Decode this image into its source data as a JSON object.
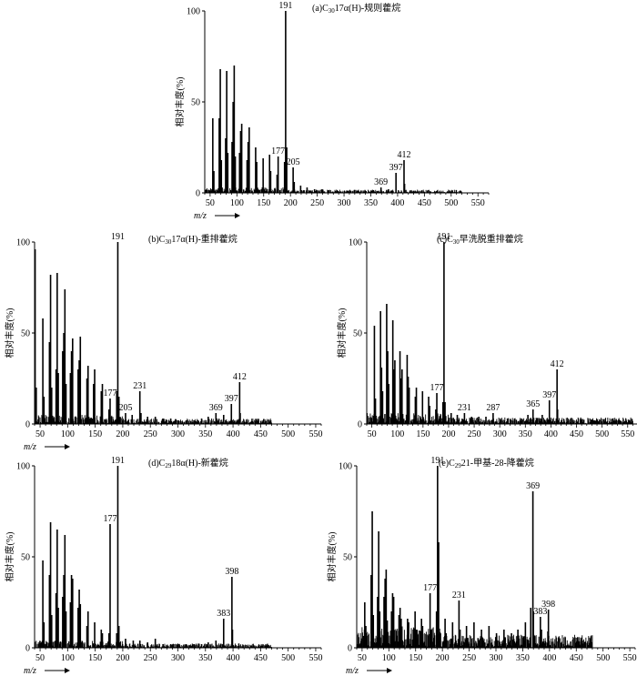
{
  "figure": {
    "background": "#ffffff",
    "ink": "#000000"
  },
  "chart_data": [
    {
      "id": "a",
      "type": "bar",
      "title_parts": [
        {
          "t": "(a)C"
        },
        {
          "t": "30",
          "sub": true
        },
        {
          "t": "17α(H)-规则藿烷"
        }
      ],
      "ylabel": "相对丰度(%)",
      "xlabel": "m/z",
      "show_xlabel": true,
      "xlim": [
        40,
        570
      ],
      "ylim": [
        0,
        100
      ],
      "xticks": [
        50,
        100,
        150,
        200,
        250,
        300,
        350,
        400,
        450,
        500,
        550
      ],
      "yticks": [
        0,
        50,
        100
      ],
      "peaks": [
        {
          "x": 55,
          "y": 41
        },
        {
          "x": 57,
          "y": 12
        },
        {
          "x": 67,
          "y": 41
        },
        {
          "x": 69,
          "y": 68
        },
        {
          "x": 71,
          "y": 18
        },
        {
          "x": 79,
          "y": 30
        },
        {
          "x": 81,
          "y": 67
        },
        {
          "x": 83,
          "y": 22
        },
        {
          "x": 91,
          "y": 28
        },
        {
          "x": 93,
          "y": 50
        },
        {
          "x": 95,
          "y": 70
        },
        {
          "x": 97,
          "y": 20
        },
        {
          "x": 105,
          "y": 22
        },
        {
          "x": 107,
          "y": 34
        },
        {
          "x": 109,
          "y": 38
        },
        {
          "x": 119,
          "y": 18
        },
        {
          "x": 121,
          "y": 28
        },
        {
          "x": 123,
          "y": 36
        },
        {
          "x": 135,
          "y": 25
        },
        {
          "x": 137,
          "y": 17
        },
        {
          "x": 149,
          "y": 19
        },
        {
          "x": 161,
          "y": 21
        },
        {
          "x": 163,
          "y": 12
        },
        {
          "x": 175,
          "y": 10
        },
        {
          "x": 177,
          "y": 20
        },
        {
          "x": 189,
          "y": 17
        },
        {
          "x": 191,
          "y": 100
        },
        {
          "x": 193,
          "y": 25
        },
        {
          "x": 205,
          "y": 14
        },
        {
          "x": 207,
          "y": 6
        },
        {
          "x": 219,
          "y": 4
        },
        {
          "x": 231,
          "y": 3
        },
        {
          "x": 245,
          "y": 2
        },
        {
          "x": 259,
          "y": 2
        },
        {
          "x": 271,
          "y": 1.5
        },
        {
          "x": 287,
          "y": 1.5
        },
        {
          "x": 301,
          "y": 1
        },
        {
          "x": 313,
          "y": 1
        },
        {
          "x": 327,
          "y": 1
        },
        {
          "x": 341,
          "y": 1
        },
        {
          "x": 355,
          "y": 1.5
        },
        {
          "x": 369,
          "y": 3
        },
        {
          "x": 383,
          "y": 2
        },
        {
          "x": 397,
          "y": 11
        },
        {
          "x": 412,
          "y": 18
        },
        {
          "x": 413,
          "y": 5
        }
      ],
      "noise": {
        "from": 40,
        "to": 520,
        "max": 3,
        "seed": 11
      },
      "peak_labels": [
        {
          "x": 191,
          "text": "191"
        },
        {
          "x": 177,
          "text": "177"
        },
        {
          "x": 205,
          "text": "205"
        },
        {
          "x": 369,
          "text": "369"
        },
        {
          "x": 397,
          "text": "397"
        },
        {
          "x": 412,
          "text": "412"
        }
      ]
    },
    {
      "id": "b",
      "type": "bar",
      "title_parts": [
        {
          "t": "(b)C"
        },
        {
          "t": "30",
          "sub": true
        },
        {
          "t": "17α(H)-重排藿烷"
        }
      ],
      "ylabel": "相对丰度(%)",
      "xlabel": "m/z",
      "show_xlabel": true,
      "xlim": [
        40,
        560
      ],
      "ylim": [
        0,
        100
      ],
      "xticks": [
        50,
        100,
        150,
        200,
        250,
        300,
        350,
        400,
        450,
        500,
        550
      ],
      "yticks": [
        0,
        50,
        100
      ],
      "peaks": [
        {
          "x": 41,
          "y": 96
        },
        {
          "x": 43,
          "y": 20
        },
        {
          "x": 55,
          "y": 58
        },
        {
          "x": 57,
          "y": 15
        },
        {
          "x": 67,
          "y": 45
        },
        {
          "x": 69,
          "y": 82
        },
        {
          "x": 71,
          "y": 20
        },
        {
          "x": 79,
          "y": 30
        },
        {
          "x": 81,
          "y": 83
        },
        {
          "x": 83,
          "y": 28
        },
        {
          "x": 91,
          "y": 40
        },
        {
          "x": 93,
          "y": 50
        },
        {
          "x": 95,
          "y": 74
        },
        {
          "x": 97,
          "y": 22
        },
        {
          "x": 105,
          "y": 28
        },
        {
          "x": 107,
          "y": 40
        },
        {
          "x": 109,
          "y": 47
        },
        {
          "x": 119,
          "y": 30
        },
        {
          "x": 121,
          "y": 35
        },
        {
          "x": 123,
          "y": 48
        },
        {
          "x": 135,
          "y": 25
        },
        {
          "x": 137,
          "y": 32
        },
        {
          "x": 147,
          "y": 22
        },
        {
          "x": 149,
          "y": 30
        },
        {
          "x": 161,
          "y": 18
        },
        {
          "x": 163,
          "y": 22
        },
        {
          "x": 175,
          "y": 8
        },
        {
          "x": 177,
          "y": 14
        },
        {
          "x": 189,
          "y": 18
        },
        {
          "x": 191,
          "y": 100
        },
        {
          "x": 193,
          "y": 15
        },
        {
          "x": 205,
          "y": 6
        },
        {
          "x": 217,
          "y": 5
        },
        {
          "x": 231,
          "y": 18
        },
        {
          "x": 233,
          "y": 6
        },
        {
          "x": 245,
          "y": 4
        },
        {
          "x": 259,
          "y": 4
        },
        {
          "x": 273,
          "y": 3
        },
        {
          "x": 287,
          "y": 3
        },
        {
          "x": 301,
          "y": 2
        },
        {
          "x": 315,
          "y": 2
        },
        {
          "x": 329,
          "y": 2
        },
        {
          "x": 343,
          "y": 3
        },
        {
          "x": 355,
          "y": 4
        },
        {
          "x": 369,
          "y": 6
        },
        {
          "x": 383,
          "y": 5
        },
        {
          "x": 397,
          "y": 11
        },
        {
          "x": 412,
          "y": 23
        },
        {
          "x": 413,
          "y": 6
        }
      ],
      "noise": {
        "from": 40,
        "to": 470,
        "max": 5,
        "seed": 23
      },
      "peak_labels": [
        {
          "x": 191,
          "text": "191"
        },
        {
          "x": 177,
          "text": "177"
        },
        {
          "x": 205,
          "text": "205"
        },
        {
          "x": 231,
          "text": "231"
        },
        {
          "x": 369,
          "text": "369"
        },
        {
          "x": 397,
          "text": "397"
        },
        {
          "x": 412,
          "text": "412"
        }
      ]
    },
    {
      "id": "c",
      "type": "bar",
      "title_parts": [
        {
          "t": "(c)C"
        },
        {
          "t": "30",
          "sub": true
        },
        {
          "t": "早洗脱重排藿烷"
        }
      ],
      "ylabel": "相对丰度(%)",
      "xlabel": "m/z",
      "show_xlabel": false,
      "xlim": [
        40,
        570
      ],
      "ylim": [
        0,
        100
      ],
      "xticks": [
        50,
        100,
        150,
        200,
        250,
        300,
        350,
        400,
        450,
        500,
        550
      ],
      "yticks": [
        0,
        50,
        100
      ],
      "peaks": [
        {
          "x": 55,
          "y": 54
        },
        {
          "x": 57,
          "y": 14
        },
        {
          "x": 67,
          "y": 62
        },
        {
          "x": 69,
          "y": 31
        },
        {
          "x": 71,
          "y": 18
        },
        {
          "x": 79,
          "y": 66
        },
        {
          "x": 81,
          "y": 40
        },
        {
          "x": 83,
          "y": 22
        },
        {
          "x": 91,
          "y": 57
        },
        {
          "x": 93,
          "y": 30
        },
        {
          "x": 95,
          "y": 35
        },
        {
          "x": 105,
          "y": 40
        },
        {
          "x": 107,
          "y": 25
        },
        {
          "x": 109,
          "y": 30
        },
        {
          "x": 119,
          "y": 38
        },
        {
          "x": 121,
          "y": 26
        },
        {
          "x": 123,
          "y": 20
        },
        {
          "x": 135,
          "y": 15
        },
        {
          "x": 137,
          "y": 20
        },
        {
          "x": 149,
          "y": 18
        },
        {
          "x": 161,
          "y": 15
        },
        {
          "x": 163,
          "y": 10
        },
        {
          "x": 175,
          "y": 8
        },
        {
          "x": 177,
          "y": 17
        },
        {
          "x": 189,
          "y": 12
        },
        {
          "x": 191,
          "y": 100
        },
        {
          "x": 193,
          "y": 12
        },
        {
          "x": 205,
          "y": 6
        },
        {
          "x": 217,
          "y": 5
        },
        {
          "x": 231,
          "y": 6
        },
        {
          "x": 245,
          "y": 4
        },
        {
          "x": 259,
          "y": 4
        },
        {
          "x": 273,
          "y": 4
        },
        {
          "x": 287,
          "y": 6
        },
        {
          "x": 301,
          "y": 3
        },
        {
          "x": 315,
          "y": 3
        },
        {
          "x": 329,
          "y": 3
        },
        {
          "x": 343,
          "y": 3
        },
        {
          "x": 355,
          "y": 5
        },
        {
          "x": 365,
          "y": 8
        },
        {
          "x": 383,
          "y": 5
        },
        {
          "x": 397,
          "y": 13
        },
        {
          "x": 412,
          "y": 30
        },
        {
          "x": 413,
          "y": 8
        }
      ],
      "noise": {
        "from": 40,
        "to": 560,
        "max": 6,
        "seed": 37
      },
      "peak_labels": [
        {
          "x": 191,
          "text": "191"
        },
        {
          "x": 177,
          "text": "177"
        },
        {
          "x": 231,
          "text": "231"
        },
        {
          "x": 287,
          "text": "287"
        },
        {
          "x": 365,
          "text": "365"
        },
        {
          "x": 397,
          "text": "397"
        },
        {
          "x": 412,
          "text": "412"
        }
      ]
    },
    {
      "id": "d",
      "type": "bar",
      "title_parts": [
        {
          "t": "(d)C"
        },
        {
          "t": "29",
          "sub": true
        },
        {
          "t": "18α(H)-新藿烷"
        }
      ],
      "ylabel": "相对丰度(%)",
      "xlabel": "m/z",
      "show_xlabel": true,
      "xlim": [
        40,
        560
      ],
      "ylim": [
        0,
        100
      ],
      "xticks": [
        50,
        100,
        150,
        200,
        250,
        300,
        350,
        400,
        450,
        500,
        550
      ],
      "yticks": [
        0,
        50,
        100
      ],
      "peaks": [
        {
          "x": 55,
          "y": 48
        },
        {
          "x": 57,
          "y": 14
        },
        {
          "x": 67,
          "y": 40
        },
        {
          "x": 69,
          "y": 69
        },
        {
          "x": 71,
          "y": 18
        },
        {
          "x": 79,
          "y": 30
        },
        {
          "x": 81,
          "y": 65
        },
        {
          "x": 83,
          "y": 22
        },
        {
          "x": 91,
          "y": 28
        },
        {
          "x": 93,
          "y": 40
        },
        {
          "x": 95,
          "y": 62
        },
        {
          "x": 97,
          "y": 20
        },
        {
          "x": 105,
          "y": 25
        },
        {
          "x": 107,
          "y": 40
        },
        {
          "x": 109,
          "y": 38
        },
        {
          "x": 119,
          "y": 22
        },
        {
          "x": 121,
          "y": 32
        },
        {
          "x": 123,
          "y": 24
        },
        {
          "x": 135,
          "y": 12
        },
        {
          "x": 137,
          "y": 20
        },
        {
          "x": 149,
          "y": 14
        },
        {
          "x": 161,
          "y": 10
        },
        {
          "x": 163,
          "y": 8
        },
        {
          "x": 175,
          "y": 8
        },
        {
          "x": 177,
          "y": 68
        },
        {
          "x": 189,
          "y": 8
        },
        {
          "x": 191,
          "y": 100
        },
        {
          "x": 193,
          "y": 12
        },
        {
          "x": 205,
          "y": 5
        },
        {
          "x": 219,
          "y": 4
        },
        {
          "x": 231,
          "y": 4
        },
        {
          "x": 245,
          "y": 3
        },
        {
          "x": 259,
          "y": 5
        },
        {
          "x": 273,
          "y": 2
        },
        {
          "x": 287,
          "y": 2
        },
        {
          "x": 301,
          "y": 2
        },
        {
          "x": 315,
          "y": 2
        },
        {
          "x": 329,
          "y": 2
        },
        {
          "x": 343,
          "y": 2
        },
        {
          "x": 355,
          "y": 3
        },
        {
          "x": 369,
          "y": 4
        },
        {
          "x": 383,
          "y": 16
        },
        {
          "x": 398,
          "y": 39
        },
        {
          "x": 399,
          "y": 10
        }
      ],
      "noise": {
        "from": 40,
        "to": 470,
        "max": 4,
        "seed": 53
      },
      "peak_labels": [
        {
          "x": 191,
          "text": "191"
        },
        {
          "x": 177,
          "text": "177"
        },
        {
          "x": 383,
          "text": "383"
        },
        {
          "x": 398,
          "text": "398"
        }
      ]
    },
    {
      "id": "e",
      "type": "bar",
      "title_parts": [
        {
          "t": "(e)C"
        },
        {
          "t": "29",
          "sub": true
        },
        {
          "t": "21-甲基-28-降藿烷"
        }
      ],
      "ylabel": "相对丰度(%)",
      "xlabel": "m/z",
      "show_xlabel": true,
      "xlim": [
        40,
        560
      ],
      "ylim": [
        0,
        100
      ],
      "xticks": [
        50,
        100,
        150,
        200,
        250,
        300,
        350,
        400,
        450,
        500,
        550
      ],
      "yticks": [
        0,
        50,
        100
      ],
      "peaks": [
        {
          "x": 55,
          "y": 25
        },
        {
          "x": 57,
          "y": 12
        },
        {
          "x": 67,
          "y": 40
        },
        {
          "x": 69,
          "y": 75
        },
        {
          "x": 71,
          "y": 18
        },
        {
          "x": 79,
          "y": 28
        },
        {
          "x": 81,
          "y": 64
        },
        {
          "x": 83,
          "y": 20
        },
        {
          "x": 91,
          "y": 28
        },
        {
          "x": 93,
          "y": 38
        },
        {
          "x": 95,
          "y": 43
        },
        {
          "x": 97,
          "y": 15
        },
        {
          "x": 105,
          "y": 20
        },
        {
          "x": 107,
          "y": 30
        },
        {
          "x": 109,
          "y": 28
        },
        {
          "x": 119,
          "y": 18
        },
        {
          "x": 121,
          "y": 22
        },
        {
          "x": 123,
          "y": 16
        },
        {
          "x": 135,
          "y": 16
        },
        {
          "x": 137,
          "y": 14
        },
        {
          "x": 149,
          "y": 20
        },
        {
          "x": 151,
          "y": 10
        },
        {
          "x": 161,
          "y": 16
        },
        {
          "x": 163,
          "y": 12
        },
        {
          "x": 177,
          "y": 30
        },
        {
          "x": 179,
          "y": 10
        },
        {
          "x": 189,
          "y": 20
        },
        {
          "x": 191,
          "y": 100
        },
        {
          "x": 193,
          "y": 58
        },
        {
          "x": 205,
          "y": 16
        },
        {
          "x": 207,
          "y": 8
        },
        {
          "x": 219,
          "y": 14
        },
        {
          "x": 231,
          "y": 26
        },
        {
          "x": 233,
          "y": 10
        },
        {
          "x": 245,
          "y": 12
        },
        {
          "x": 259,
          "y": 14
        },
        {
          "x": 273,
          "y": 10
        },
        {
          "x": 287,
          "y": 12
        },
        {
          "x": 301,
          "y": 8
        },
        {
          "x": 315,
          "y": 10
        },
        {
          "x": 329,
          "y": 8
        },
        {
          "x": 341,
          "y": 10
        },
        {
          "x": 355,
          "y": 14
        },
        {
          "x": 365,
          "y": 22
        },
        {
          "x": 369,
          "y": 86
        },
        {
          "x": 370,
          "y": 20
        },
        {
          "x": 383,
          "y": 17
        },
        {
          "x": 385,
          "y": 10
        },
        {
          "x": 397,
          "y": 9
        },
        {
          "x": 398,
          "y": 21
        }
      ],
      "noise": {
        "from": 40,
        "to": 480,
        "max": 12,
        "seed": 71
      },
      "peak_labels": [
        {
          "x": 191,
          "text": "191"
        },
        {
          "x": 177,
          "text": "177"
        },
        {
          "x": 231,
          "text": "231"
        },
        {
          "x": 369,
          "text": "369"
        },
        {
          "x": 383,
          "text": "383"
        },
        {
          "x": 398,
          "text": "398"
        }
      ]
    }
  ]
}
